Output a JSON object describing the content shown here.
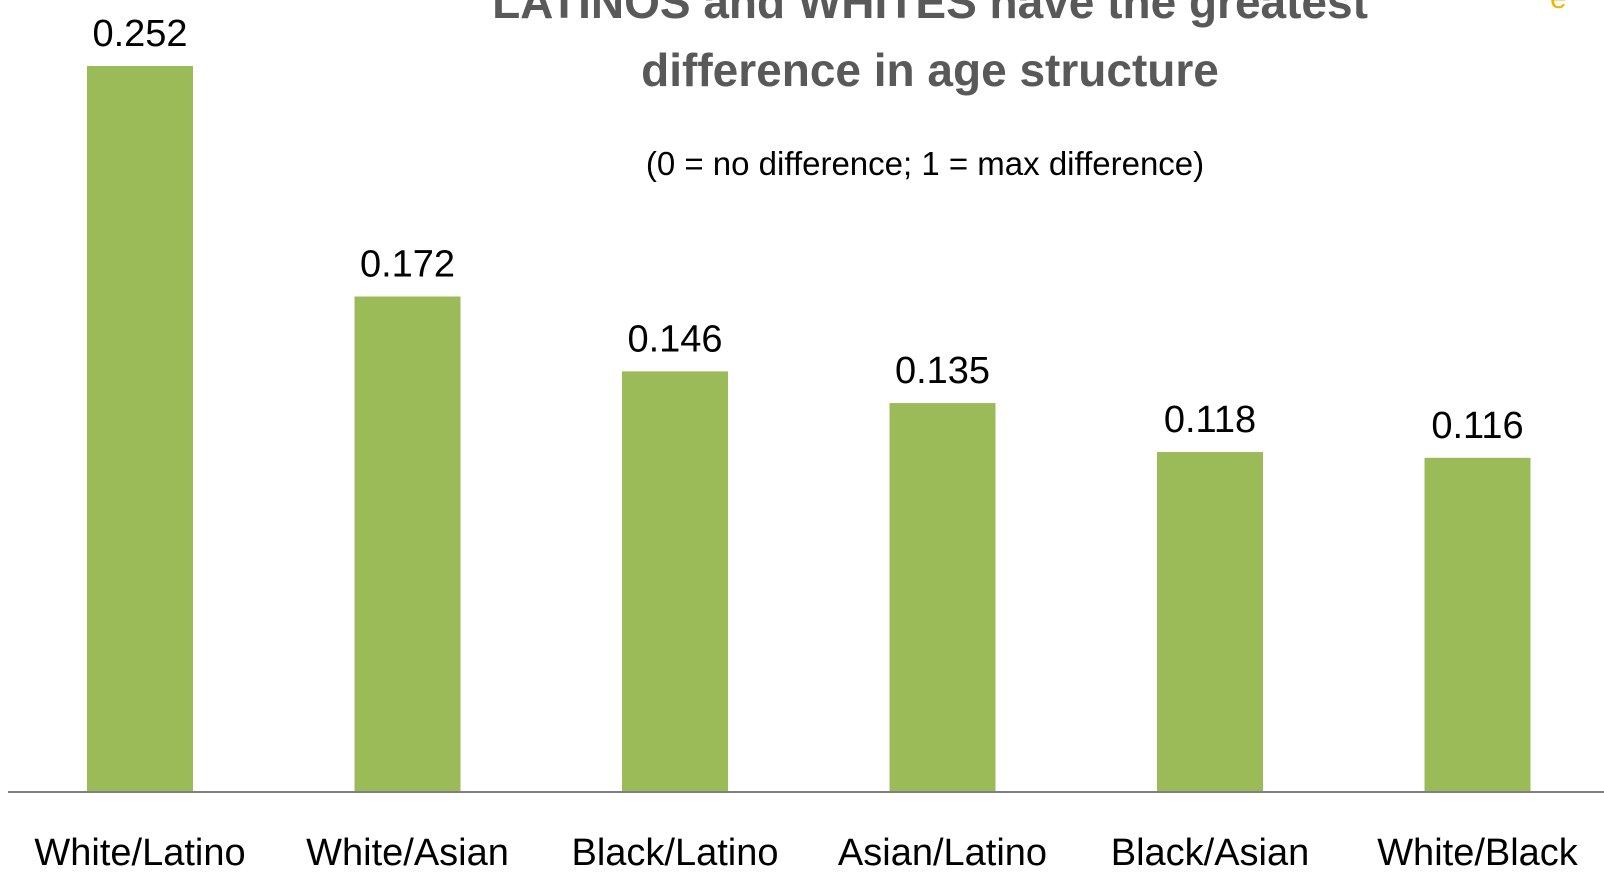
{
  "chart_data": {
    "type": "bar",
    "title_line1": "LATINOS and WHITES have the greatest",
    "title_line2": "difference in age structure",
    "subtitle": "(0 = no difference; 1 = max difference)",
    "categories": [
      "White/Latino",
      "White/Asian",
      "Black/Latino",
      "Asian/Latino",
      "Black/Asian",
      "White/Black"
    ],
    "values": [
      0.252,
      0.172,
      0.146,
      0.135,
      0.118,
      0.116
    ],
    "value_labels": [
      "0.252",
      "0.172",
      "0.146",
      "0.135",
      "0.118",
      "0.116"
    ],
    "ylim": [
      0,
      0.252
    ],
    "grid": false,
    "legend": "none",
    "bar_color": "#9bbb59",
    "axis_color": "#808080"
  }
}
